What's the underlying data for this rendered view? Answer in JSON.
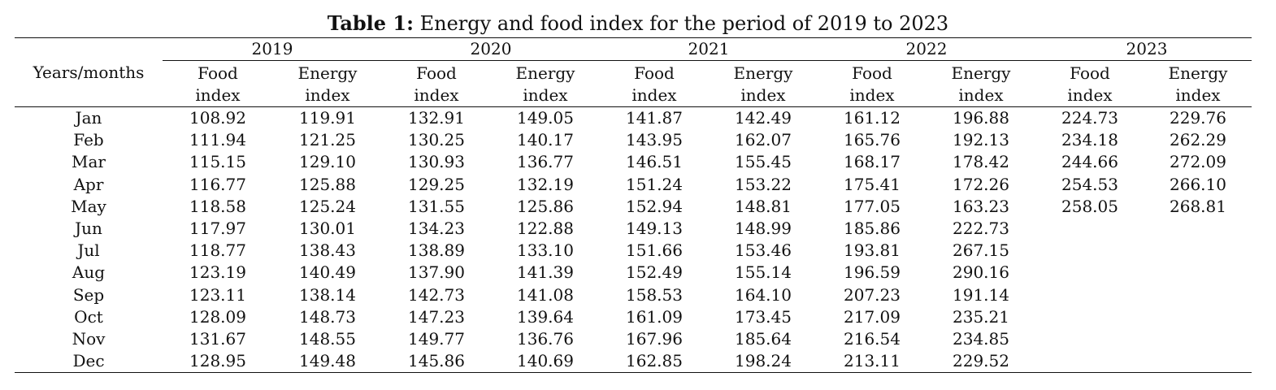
{
  "caption": {
    "label": "Table 1:",
    "text": " Energy and food index for the period of 2019 to 2023"
  },
  "header": {
    "first_col": "Years/months",
    "years": [
      "2019",
      "2020",
      "2021",
      "2022",
      "2023"
    ],
    "food_label": [
      "Food",
      "index"
    ],
    "energy_label": [
      "Energy",
      "index"
    ]
  },
  "rows": [
    {
      "month": "Jan",
      "values": [
        "108.92",
        "119.91",
        "132.91",
        "149.05",
        "141.87",
        "142.49",
        "161.12",
        "196.88",
        "224.73",
        "229.76"
      ]
    },
    {
      "month": "Feb",
      "values": [
        "111.94",
        "121.25",
        "130.25",
        "140.17",
        "143.95",
        "162.07",
        "165.76",
        "192.13",
        "234.18",
        "262.29"
      ]
    },
    {
      "month": "Mar",
      "values": [
        "115.15",
        "129.10",
        "130.93",
        "136.77",
        "146.51",
        "155.45",
        "168.17",
        "178.42",
        "244.66",
        "272.09"
      ]
    },
    {
      "month": "Apr",
      "values": [
        "116.77",
        "125.88",
        "129.25",
        "132.19",
        "151.24",
        "153.22",
        "175.41",
        "172.26",
        "254.53",
        "266.10"
      ]
    },
    {
      "month": "May",
      "values": [
        "118.58",
        "125.24",
        "131.55",
        "125.86",
        "152.94",
        "148.81",
        "177.05",
        "163.23",
        "258.05",
        "268.81"
      ]
    },
    {
      "month": "Jun",
      "values": [
        "117.97",
        "130.01",
        "134.23",
        "122.88",
        "149.13",
        "148.99",
        "185.86",
        "222.73",
        "",
        ""
      ]
    },
    {
      "month": "Jul",
      "values": [
        "118.77",
        "138.43",
        "138.89",
        "133.10",
        "151.66",
        "153.46",
        "193.81",
        "267.15",
        "",
        ""
      ]
    },
    {
      "month": "Aug",
      "values": [
        "123.19",
        "140.49",
        "137.90",
        "141.39",
        "152.49",
        "155.14",
        "196.59",
        "290.16",
        "",
        ""
      ]
    },
    {
      "month": "Sep",
      "values": [
        "123.11",
        "138.14",
        "142.73",
        "141.08",
        "158.53",
        "164.10",
        "207.23",
        "191.14",
        "",
        ""
      ]
    },
    {
      "month": "Oct",
      "values": [
        "128.09",
        "148.73",
        "147.23",
        "139.64",
        "161.09",
        "173.45",
        "217.09",
        "235.21",
        "",
        ""
      ]
    },
    {
      "month": "Nov",
      "values": [
        "131.67",
        "148.55",
        "149.77",
        "136.76",
        "167.96",
        "185.64",
        "216.54",
        "234.85",
        "",
        ""
      ]
    },
    {
      "month": "Dec",
      "values": [
        "128.95",
        "149.48",
        "145.86",
        "140.69",
        "162.85",
        "198.24",
        "213.11",
        "229.52",
        "",
        ""
      ]
    }
  ]
}
